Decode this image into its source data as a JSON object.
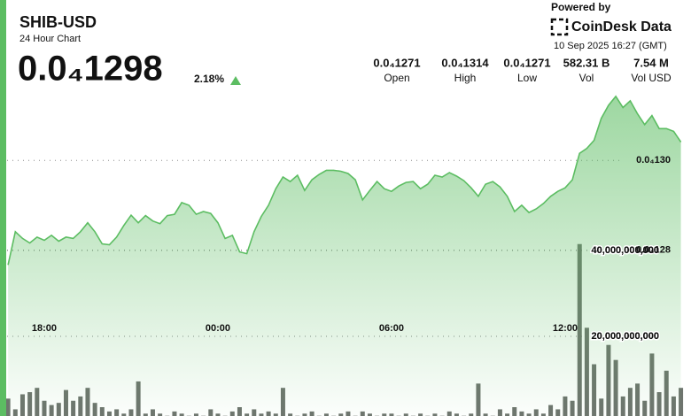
{
  "header": {
    "title": "SHIB-USD",
    "subtitle": "24 Hour Chart",
    "price": "0.0₄1298",
    "change": "2.18%",
    "powered_by": "Powered by",
    "brand": "CoinDesk Data",
    "timestamp": "10 Sep 2025 16:27 (GMT)"
  },
  "stats": [
    {
      "value": "0.0₄1271",
      "label": "Open"
    },
    {
      "value": "0.0₄1314",
      "label": "High"
    },
    {
      "value": "0.0₄1271",
      "label": "Low"
    },
    {
      "value": "582.31 B",
      "label": "Vol"
    },
    {
      "value": "7.54 M",
      "label": "Vol USD"
    }
  ],
  "chart_data": {
    "type": "line",
    "xlim": [
      16.47,
      40.35
    ],
    "xticks": [
      {
        "value": 18,
        "label": "18:00"
      },
      {
        "value": 24,
        "label": "00:00"
      },
      {
        "value": 30,
        "label": "06:00"
      },
      {
        "value": 36,
        "label": "12:00"
      }
    ],
    "ylim": [
      1.243e-05,
      1.32e-05
    ],
    "yticks": [
      {
        "value": 1.3e-05,
        "label": "0.0₄130"
      },
      {
        "value": 1.28e-05,
        "label": "0.0₄128"
      }
    ],
    "y2lim": [
      0,
      80000000000
    ],
    "y2ticks": [
      {
        "value": 40000000000,
        "label": "40,000,000,000"
      },
      {
        "value": 20000000000,
        "label": "20,000,000,000"
      }
    ],
    "grid": true,
    "x": [
      16.75,
      17,
      17.25,
      17.5,
      17.75,
      18,
      18.25,
      18.5,
      18.75,
      19,
      19.25,
      19.5,
      19.75,
      20,
      20.25,
      20.5,
      20.75,
      21,
      21.25,
      21.5,
      21.75,
      22,
      22.25,
      22.5,
      22.75,
      23,
      23.25,
      23.5,
      23.75,
      24,
      24.25,
      24.5,
      24.75,
      25,
      25.25,
      25.5,
      25.75,
      26,
      26.25,
      26.5,
      26.75,
      27,
      27.25,
      27.5,
      27.75,
      28,
      28.25,
      28.5,
      28.75,
      29,
      29.25,
      29.5,
      29.75,
      30,
      30.25,
      30.5,
      30.75,
      31,
      31.25,
      31.5,
      31.75,
      32,
      32.25,
      32.5,
      32.75,
      33,
      33.25,
      33.5,
      33.75,
      34,
      34.25,
      34.5,
      34.75,
      35,
      35.25,
      35.5,
      35.75,
      36,
      36.25,
      36.5,
      36.75,
      37,
      37.25,
      37.5,
      37.75,
      38,
      38.25,
      38.5,
      38.75,
      39,
      39.25,
      39.5,
      39.75,
      40
    ],
    "series": [
      {
        "type": "line",
        "color": "#5cbd62",
        "values": [
          1.2767e-05,
          1.2841e-05,
          1.2826e-05,
          1.2816e-05,
          1.2829e-05,
          1.2822e-05,
          1.2833e-05,
          1.282e-05,
          1.2829e-05,
          1.2826e-05,
          1.2841e-05,
          1.2861e-05,
          1.2841e-05,
          1.2814e-05,
          1.2812e-05,
          1.2829e-05,
          1.2855e-05,
          1.2878e-05,
          1.2861e-05,
          1.2877e-05,
          1.2865e-05,
          1.2859e-05,
          1.2877e-05,
          1.288e-05,
          1.2906e-05,
          1.29e-05,
          1.288e-05,
          1.2886e-05,
          1.2882e-05,
          1.2861e-05,
          1.2826e-05,
          1.2833e-05,
          1.2796e-05,
          1.2792e-05,
          1.2841e-05,
          1.2875e-05,
          1.29e-05,
          1.2937e-05,
          1.2963e-05,
          1.2953e-05,
          1.2967e-05,
          1.2933e-05,
          1.2957e-05,
          1.2969e-05,
          1.2978e-05,
          1.2978e-05,
          1.2976e-05,
          1.2971e-05,
          1.2957e-05,
          1.2912e-05,
          1.2933e-05,
          1.2953e-05,
          1.2937e-05,
          1.2931e-05,
          1.2943e-05,
          1.2951e-05,
          1.2953e-05,
          1.2937e-05,
          1.2947e-05,
          1.2967e-05,
          1.2963e-05,
          1.2973e-05,
          1.2965e-05,
          1.2955e-05,
          1.2939e-05,
          1.292e-05,
          1.2947e-05,
          1.2953e-05,
          1.2941e-05,
          1.292e-05,
          1.2886e-05,
          1.29e-05,
          1.2884e-05,
          1.2892e-05,
          1.2904e-05,
          1.292e-05,
          1.2931e-05,
          1.2939e-05,
          1.2957e-05,
          1.3016e-05,
          1.3027e-05,
          1.3045e-05,
          1.3094e-05,
          1.3123e-05,
          1.3143e-05,
          1.3118e-05,
          1.3133e-05,
          1.3104e-05,
          1.308e-05,
          1.31e-05,
          1.3071e-05,
          1.3071e-05,
          1.3065e-05,
          1.3041e-05
        ]
      },
      {
        "type": "bar",
        "axis": "y2",
        "color": "#6e746e",
        "values": [
          5500000000,
          3000000000,
          6500000000,
          7000000000,
          8000000000,
          5000000000,
          4000000000,
          4500000000,
          7500000000,
          5000000000,
          6000000000,
          8000000000,
          4500000000,
          3500000000,
          2500000000,
          3000000000,
          2000000000,
          3000000000,
          9500000000,
          2000000000,
          3000000000,
          2000000000,
          1500000000,
          2500000000,
          2000000000,
          1500000000,
          2000000000,
          1500000000,
          3000000000,
          2000000000,
          1500000000,
          2500000000,
          3500000000,
          2000000000,
          3000000000,
          2000000000,
          2500000000,
          2000000000,
          8000000000,
          2000000000,
          1500000000,
          2000000000,
          2500000000,
          1500000000,
          2000000000,
          1500000000,
          2000000000,
          2500000000,
          1500000000,
          2500000000,
          2000000000,
          1500000000,
          2000000000,
          2000000000,
          1500000000,
          2000000000,
          1500000000,
          2000000000,
          1500000000,
          2000000000,
          1500000000,
          2500000000,
          2000000000,
          1500000000,
          2000000000,
          9000000000,
          2000000000,
          1500000000,
          3000000000,
          2000000000,
          3500000000,
          2500000000,
          2000000000,
          3000000000,
          2000000000,
          4000000000,
          3000000000,
          6000000000,
          5000000000,
          41500000000,
          22000000000,
          13500000000,
          5500000000,
          18000000000,
          14500000000,
          6000000000,
          8000000000,
          9000000000,
          5000000000,
          16000000000,
          7000000000,
          12000000000,
          6000000000,
          8000000000
        ]
      }
    ]
  }
}
